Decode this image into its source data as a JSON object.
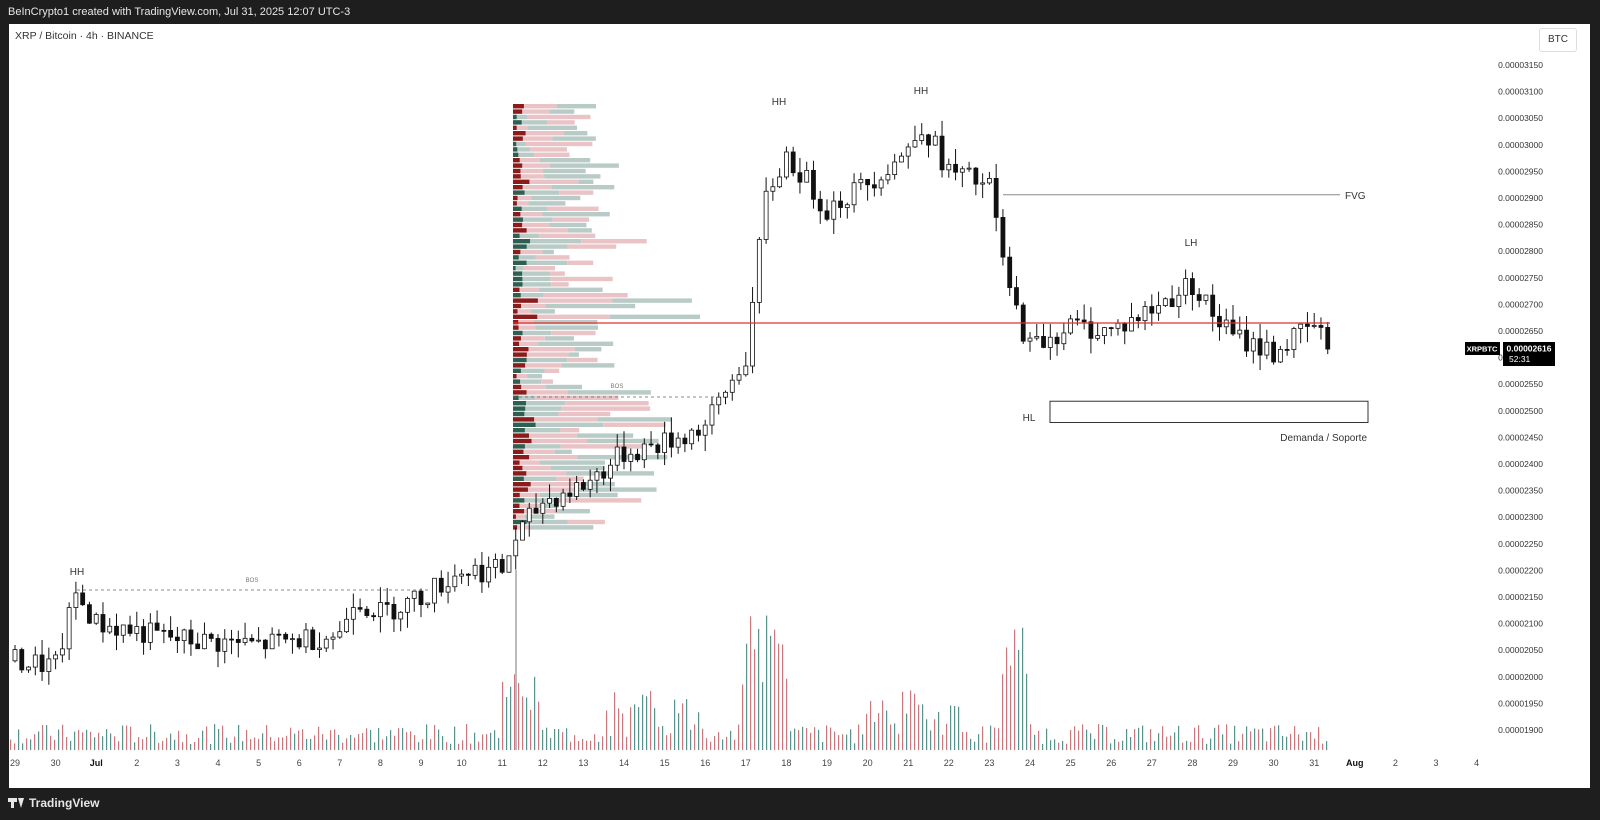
{
  "header": {
    "text": "BeInCrypto1 created with TradingView.com, Jul 31, 2025 12:07 UTC-3"
  },
  "symbol": {
    "text": "XRP / Bitcoin · 4h · BINANCE"
  },
  "currency_button": {
    "label": "BTC"
  },
  "price_tag": {
    "ticker": "XRPBTC",
    "price": "0.00002616",
    "countdown": "52:31",
    "color": "#000000"
  },
  "footer": {
    "brand": "TradingView"
  },
  "annotations": {
    "hh1": "HH",
    "hh2": "HH",
    "hh3": "HH",
    "lh": "LH",
    "hl": "HL",
    "fvg": "FVG",
    "bos1": "BOS",
    "bos2": "BOS",
    "demand": "Demanda / Soporte"
  },
  "colors": {
    "bull_volume": "#1e6e62",
    "bear_volume": "#b84a52",
    "red_line": "#e03030",
    "profile_up": "#2f5f50",
    "profile_down": "#8c1c1c"
  },
  "chart_data": {
    "type": "candlestick",
    "symbol": "XRPBTC",
    "timeframe": "4h",
    "y_ticks": [
      "0.00003150",
      "0.00003100",
      "0.00003050",
      "0.00003000",
      "0.00002950",
      "0.00002900",
      "0.00002850",
      "0.00002800",
      "0.00002750",
      "0.00002700",
      "0.00002650",
      "0.00002600",
      "0.00002550",
      "0.00002500",
      "0.00002450",
      "0.00002400",
      "0.00002350",
      "0.00002300",
      "0.00002250",
      "0.00002200",
      "0.00002150",
      "0.00002100",
      "0.00002050",
      "0.00002000",
      "0.00001950",
      "0.00001900"
    ],
    "x_ticks": [
      "29",
      "30",
      "Jul",
      "2",
      "3",
      "4",
      "5",
      "6",
      "7",
      "8",
      "9",
      "10",
      "11",
      "12",
      "13",
      "14",
      "15",
      "16",
      "17",
      "18",
      "19",
      "20",
      "21",
      "22",
      "23",
      "24",
      "25",
      "26",
      "27",
      "28",
      "29",
      "30",
      "31",
      "Aug",
      "2",
      "3",
      "4"
    ],
    "ylim": [
      1.89e-05,
      3.17e-05
    ],
    "price_anchors": [
      {
        "date": "2025-06-29",
        "price": 2.03e-05
      },
      {
        "date": "2025-06-30",
        "price": 2.02e-05
      },
      {
        "date": "2025-06-30 12:00",
        "price": 2.155e-05
      },
      {
        "date": "2025-07-01",
        "price": 2.1e-05
      },
      {
        "date": "2025-07-03",
        "price": 2.07e-05
      },
      {
        "date": "2025-07-05",
        "price": 2.06e-05
      },
      {
        "date": "2025-07-07",
        "price": 2.08e-05
      },
      {
        "date": "2025-07-07 08:00",
        "price": 2.15e-05
      },
      {
        "date": "2025-07-08",
        "price": 2.12e-05
      },
      {
        "date": "2025-07-09",
        "price": 2.15e-05
      },
      {
        "date": "2025-07-10",
        "price": 2.2e-05
      },
      {
        "date": "2025-07-11",
        "price": 2.2e-05
      },
      {
        "date": "2025-07-11 08:00",
        "price": 2.26e-05
      },
      {
        "date": "2025-07-12",
        "price": 2.33e-05
      },
      {
        "date": "2025-07-13",
        "price": 2.36e-05
      },
      {
        "date": "2025-07-14",
        "price": 2.42e-05
      },
      {
        "date": "2025-07-15",
        "price": 2.44e-05
      },
      {
        "date": "2025-07-16",
        "price": 2.47e-05
      },
      {
        "date": "2025-07-17",
        "price": 2.6e-05
      },
      {
        "date": "2025-07-17 12:00",
        "price": 2.9e-05
      },
      {
        "date": "2025-07-18",
        "price": 2.98e-05
      },
      {
        "date": "2025-07-19",
        "price": 2.88e-05
      },
      {
        "date": "2025-07-20",
        "price": 2.93e-05
      },
      {
        "date": "2025-07-21",
        "price": 2.99e-05
      },
      {
        "date": "2025-07-21 08:00",
        "price": 3.04e-05
      },
      {
        "date": "2025-07-22",
        "price": 2.95e-05
      },
      {
        "date": "2025-07-23",
        "price": 2.92e-05
      },
      {
        "date": "2025-07-23 12:00",
        "price": 2.72e-05
      },
      {
        "date": "2025-07-24",
        "price": 2.62e-05
      },
      {
        "date": "2025-07-25",
        "price": 2.66e-05
      },
      {
        "date": "2025-07-26",
        "price": 2.65e-05
      },
      {
        "date": "2025-07-27",
        "price": 2.69e-05
      },
      {
        "date": "2025-07-28",
        "price": 2.74e-05
      },
      {
        "date": "2025-07-28 12:00",
        "price": 2.68e-05
      },
      {
        "date": "2025-07-29",
        "price": 2.64e-05
      },
      {
        "date": "2025-07-30",
        "price": 2.61e-05
      },
      {
        "date": "2025-07-31",
        "price": 2.66e-05
      },
      {
        "date": "2025-07-31 08:00",
        "price": 2.616e-05
      }
    ],
    "red_level": 2.665e-05,
    "fvg_level": 2.906e-05,
    "demand_zone": [
      2.478e-05,
      2.518e-05
    ],
    "last_price": 2.616e-05
  }
}
